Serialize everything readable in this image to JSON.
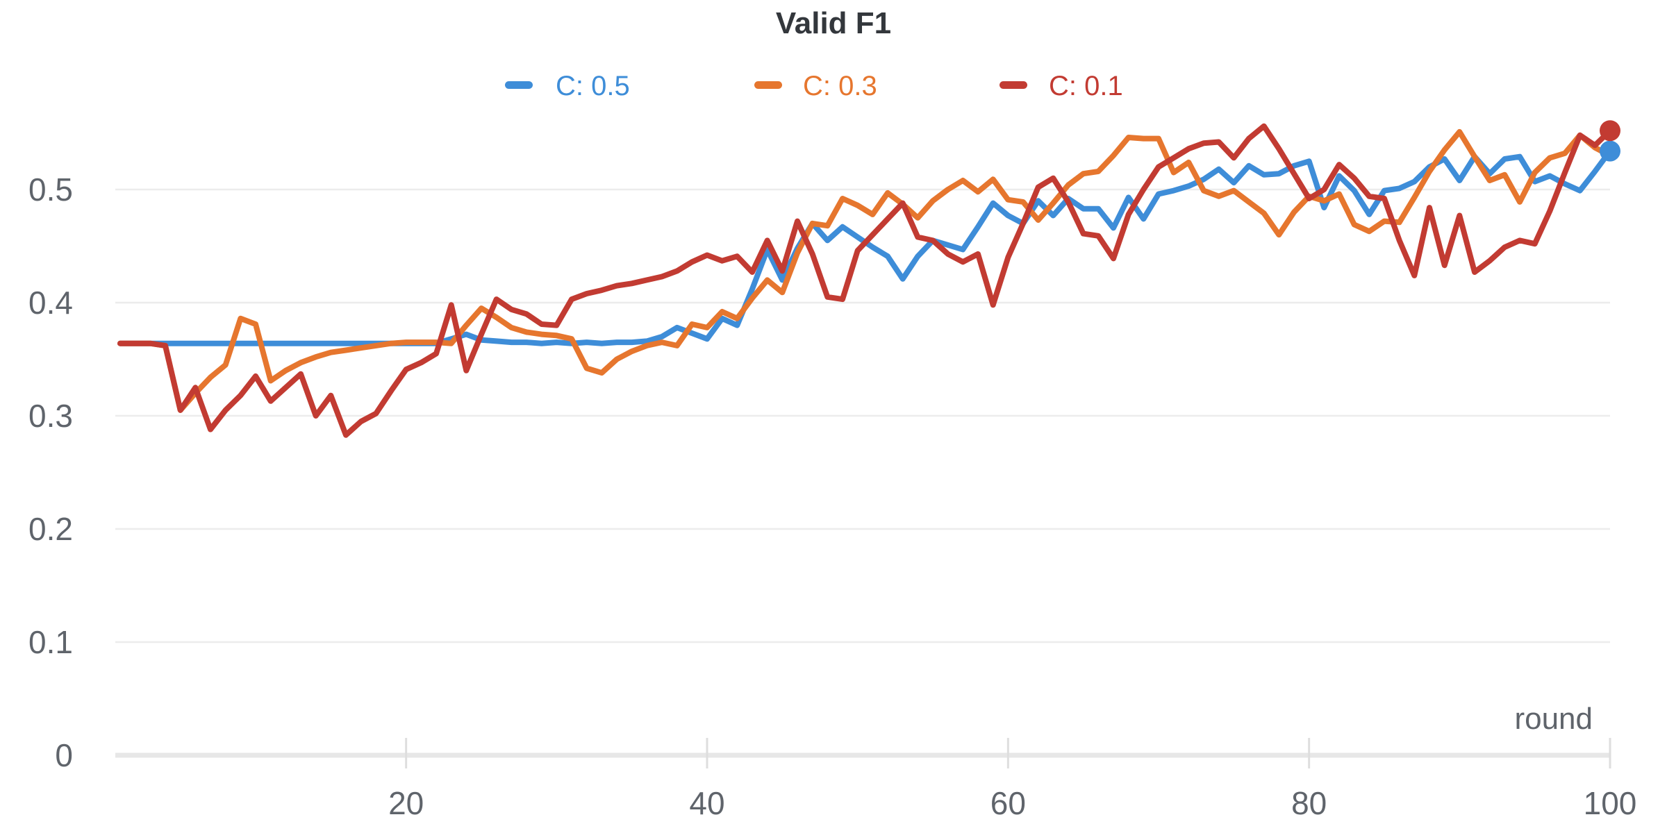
{
  "chart_data": {
    "type": "line",
    "title": "Valid F1",
    "xlabel": "round",
    "grid": true,
    "legend_position": "top-center",
    "xlim": [
      1,
      100
    ],
    "ylim": [
      0,
      0.58
    ],
    "x_ticks": [
      20,
      40,
      60,
      80,
      100
    ],
    "y_ticks": [
      0,
      0.1,
      0.2,
      0.3,
      0.4,
      0.5
    ],
    "y_tick_labels": [
      "0",
      "0.1",
      "0.2",
      "0.3",
      "0.4",
      "0.5"
    ],
    "colors": {
      "blue": "#3E8DD8",
      "orange": "#E6762E",
      "red": "#C23B32",
      "gridline": "#ECECEC",
      "zero_line": "#E7E7E7",
      "tick_mark": "#DEDEDE",
      "axis_text": "#5F646B",
      "title_text": "#33373C"
    },
    "series": [
      {
        "name": "C: 0.5",
        "color": "#3E8DD8",
        "end_dot": true,
        "values": [
          0.364,
          0.364,
          0.364,
          0.364,
          0.364,
          0.364,
          0.364,
          0.364,
          0.364,
          0.364,
          0.364,
          0.364,
          0.364,
          0.364,
          0.364,
          0.364,
          0.364,
          0.364,
          0.364,
          0.364,
          0.364,
          0.364,
          0.368,
          0.372,
          0.367,
          0.366,
          0.365,
          0.365,
          0.364,
          0.365,
          0.364,
          0.365,
          0.364,
          0.365,
          0.365,
          0.366,
          0.37,
          0.378,
          0.373,
          0.368,
          0.386,
          0.38,
          0.412,
          0.447,
          0.42,
          0.448,
          0.47,
          0.455,
          0.467,
          0.458,
          0.449,
          0.441,
          0.421,
          0.441,
          0.455,
          0.451,
          0.447,
          0.467,
          0.488,
          0.477,
          0.47,
          0.49,
          0.477,
          0.492,
          0.483,
          0.483,
          0.466,
          0.493,
          0.474,
          0.496,
          0.499,
          0.503,
          0.509,
          0.518,
          0.506,
          0.521,
          0.513,
          0.514,
          0.521,
          0.525,
          0.484,
          0.512,
          0.499,
          0.478,
          0.499,
          0.501,
          0.507,
          0.52,
          0.527,
          0.508,
          0.529,
          0.514,
          0.527,
          0.529,
          0.507,
          0.512,
          0.505,
          0.499,
          0.516,
          0.534
        ]
      },
      {
        "name": "C: 0.3",
        "color": "#E6762E",
        "end_dot": false,
        "values": [
          0.364,
          0.364,
          0.364,
          0.362,
          0.305,
          0.32,
          0.334,
          0.345,
          0.386,
          0.381,
          0.331,
          0.34,
          0.347,
          0.352,
          0.356,
          0.358,
          0.36,
          0.362,
          0.364,
          0.365,
          0.365,
          0.365,
          0.364,
          0.38,
          0.395,
          0.387,
          0.378,
          0.374,
          0.372,
          0.371,
          0.368,
          0.342,
          0.338,
          0.35,
          0.357,
          0.362,
          0.365,
          0.362,
          0.381,
          0.378,
          0.392,
          0.386,
          0.404,
          0.42,
          0.409,
          0.444,
          0.47,
          0.468,
          0.492,
          0.486,
          0.478,
          0.497,
          0.487,
          0.475,
          0.49,
          0.5,
          0.508,
          0.498,
          0.509,
          0.491,
          0.489,
          0.473,
          0.488,
          0.504,
          0.514,
          0.516,
          0.53,
          0.546,
          0.545,
          0.545,
          0.515,
          0.524,
          0.499,
          0.494,
          0.499,
          0.489,
          0.479,
          0.46,
          0.48,
          0.494,
          0.49,
          0.496,
          0.469,
          0.463,
          0.472,
          0.471,
          0.493,
          0.516,
          0.535,
          0.551,
          0.529,
          0.508,
          0.513,
          0.489,
          0.515,
          0.528,
          0.532,
          0.548,
          0.537,
          0.53
        ]
      },
      {
        "name": "C: 0.1",
        "color": "#C23B32",
        "end_dot": true,
        "values": [
          0.364,
          0.364,
          0.364,
          0.362,
          0.305,
          0.325,
          0.288,
          0.305,
          0.318,
          0.335,
          0.313,
          0.325,
          0.337,
          0.3,
          0.318,
          0.283,
          0.295,
          0.302,
          0.322,
          0.341,
          0.347,
          0.355,
          0.398,
          0.34,
          0.372,
          0.403,
          0.394,
          0.39,
          0.381,
          0.38,
          0.403,
          0.408,
          0.411,
          0.415,
          0.417,
          0.42,
          0.423,
          0.428,
          0.436,
          0.442,
          0.437,
          0.441,
          0.427,
          0.455,
          0.428,
          0.472,
          0.443,
          0.405,
          0.403,
          0.446,
          0.46,
          0.474,
          0.488,
          0.458,
          0.455,
          0.443,
          0.436,
          0.443,
          0.398,
          0.44,
          0.47,
          0.502,
          0.51,
          0.489,
          0.461,
          0.459,
          0.439,
          0.478,
          0.5,
          0.52,
          0.528,
          0.536,
          0.541,
          0.542,
          0.528,
          0.545,
          0.556,
          0.536,
          0.514,
          0.492,
          0.5,
          0.522,
          0.51,
          0.494,
          0.492,
          0.455,
          0.424,
          0.484,
          0.433,
          0.477,
          0.427,
          0.437,
          0.449,
          0.455,
          0.452,
          0.481,
          0.515,
          0.548,
          0.539,
          0.552
        ]
      }
    ]
  }
}
